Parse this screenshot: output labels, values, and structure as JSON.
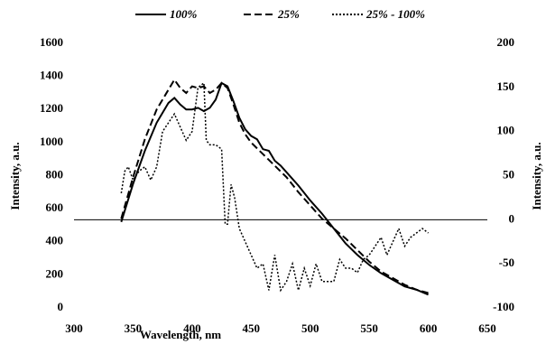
{
  "chart_data": {
    "type": "line",
    "xlabel": "Wavelength, nm",
    "ylabel": "Intensity, a.u.",
    "y2label": "Intensity, a.u.",
    "xlim": [
      300,
      650
    ],
    "xticks": [
      300,
      350,
      400,
      450,
      500,
      550,
      600,
      650
    ],
    "ylim": [
      0,
      1600
    ],
    "yticks": [
      0,
      200,
      400,
      600,
      800,
      1000,
      1200,
      1400,
      1600
    ],
    "y2lim": [
      -100,
      200
    ],
    "y2ticks": [
      -100,
      -50,
      0,
      50,
      100,
      150,
      200
    ],
    "legend": "top",
    "series": [
      {
        "name": "100%",
        "color": "#000000",
        "dash": "none",
        "x": [
          340,
          350,
          360,
          370,
          380,
          385,
          390,
          395,
          400,
          405,
          410,
          415,
          420,
          425,
          430,
          435,
          440,
          445,
          450,
          455,
          460,
          465,
          470,
          475,
          480,
          490,
          500,
          510,
          520,
          530,
          540,
          550,
          560,
          570,
          580,
          590,
          600
        ],
        "values": [
          520,
          750,
          950,
          1120,
          1240,
          1270,
          1230,
          1200,
          1200,
          1210,
          1190,
          1210,
          1260,
          1360,
          1340,
          1250,
          1150,
          1080,
          1040,
          1020,
          960,
          950,
          890,
          860,
          820,
          740,
          650,
          570,
          480,
          390,
          320,
          260,
          210,
          170,
          130,
          110,
          80
        ]
      },
      {
        "name": "25%",
        "color": "#000000",
        "dash": "8,4",
        "x": [
          340,
          350,
          360,
          370,
          380,
          385,
          390,
          395,
          400,
          405,
          410,
          415,
          420,
          425,
          430,
          435,
          440,
          445,
          450,
          460,
          470,
          480,
          490,
          500,
          510,
          520,
          530,
          540,
          550,
          560,
          570,
          580,
          590,
          600
        ],
        "values": [
          540,
          790,
          1020,
          1200,
          1320,
          1380,
          1330,
          1300,
          1340,
          1330,
          1340,
          1300,
          1320,
          1360,
          1330,
          1230,
          1120,
          1050,
          1000,
          930,
          860,
          790,
          700,
          620,
          540,
          480,
          420,
          350,
          280,
          220,
          180,
          140,
          110,
          90
        ]
      },
      {
        "name": "25% - 100%",
        "color": "#000000",
        "dash": "2,2",
        "axis": "y2",
        "x": [
          340,
          343,
          346,
          350,
          355,
          360,
          365,
          370,
          375,
          380,
          385,
          390,
          395,
          400,
          405,
          410,
          412,
          415,
          420,
          425,
          428,
          430,
          433,
          436,
          440,
          445,
          450,
          455,
          460,
          465,
          470,
          475,
          480,
          485,
          490,
          495,
          500,
          505,
          510,
          515,
          520,
          525,
          530,
          535,
          540,
          545,
          550,
          555,
          560,
          565,
          570,
          575,
          580,
          585,
          590,
          595,
          600
        ],
        "values": [
          30,
          55,
          60,
          45,
          55,
          60,
          45,
          60,
          100,
          110,
          120,
          105,
          90,
          100,
          150,
          155,
          90,
          85,
          85,
          80,
          -5,
          -5,
          40,
          25,
          -10,
          -25,
          -40,
          -55,
          -50,
          -80,
          -40,
          -80,
          -70,
          -50,
          -80,
          -55,
          -75,
          -50,
          -70,
          -70,
          -70,
          -45,
          -55,
          -55,
          -60,
          -45,
          -40,
          -30,
          -20,
          -40,
          -25,
          -10,
          -30,
          -20,
          -15,
          -10,
          -15
        ]
      }
    ]
  }
}
